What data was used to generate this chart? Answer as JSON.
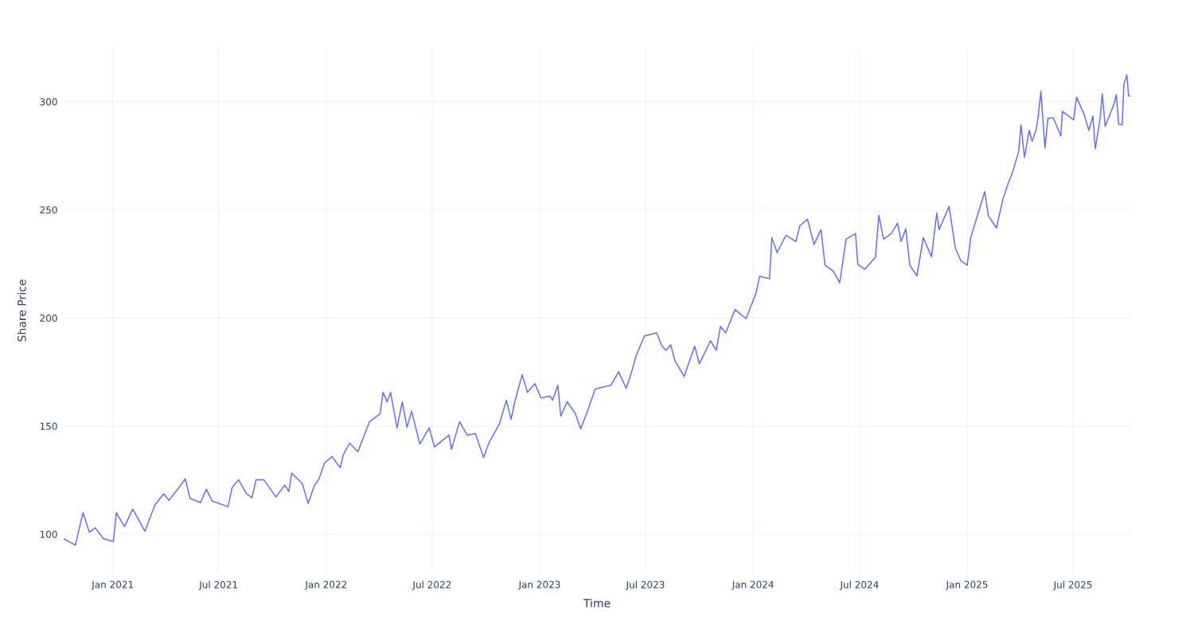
{
  "chart_data": {
    "type": "line",
    "xlabel": "Time",
    "ylabel": "Share Price",
    "color": "#636efa",
    "grid": true,
    "xlim": [
      "2020-10-09",
      "2025-10-07"
    ],
    "ylim": [
      82,
      325
    ],
    "xticks": [
      {
        "value": "2021-01-01",
        "label": "Jan 2021"
      },
      {
        "value": "2021-07-01",
        "label": "Jul 2021"
      },
      {
        "value": "2022-01-01",
        "label": "Jan 2022"
      },
      {
        "value": "2022-07-01",
        "label": "Jul 2022"
      },
      {
        "value": "2023-01-01",
        "label": "Jan 2023"
      },
      {
        "value": "2023-07-01",
        "label": "Jul 2023"
      },
      {
        "value": "2024-01-01",
        "label": "Jan 2024"
      },
      {
        "value": "2024-07-01",
        "label": "Jul 2024"
      },
      {
        "value": "2025-01-01",
        "label": "Jan 2025"
      },
      {
        "value": "2025-07-01",
        "label": "Jul 2025"
      }
    ],
    "yticks": [
      100,
      150,
      200,
      250,
      300
    ],
    "x": [
      "2020-10-09",
      "2020-10-29",
      "2020-11-11",
      "2020-11-22",
      "2020-12-02",
      "2020-12-16",
      "2021-01-02",
      "2021-01-07",
      "2021-01-21",
      "2021-02-04",
      "2021-02-25",
      "2021-03-14",
      "2021-03-29",
      "2021-04-07",
      "2021-04-24",
      "2021-05-05",
      "2021-05-13",
      "2021-05-31",
      "2021-06-10",
      "2021-06-20",
      "2021-07-17",
      "2021-07-24",
      "2021-08-04",
      "2021-08-17",
      "2021-08-27",
      "2021-09-03",
      "2021-09-16",
      "2021-10-07",
      "2021-10-22",
      "2021-10-29",
      "2021-11-03",
      "2021-11-21",
      "2021-12-01",
      "2021-12-12",
      "2021-12-19",
      "2021-12-29",
      "2022-01-11",
      "2022-01-25",
      "2022-01-30",
      "2022-02-10",
      "2022-02-24",
      "2022-03-07",
      "2022-03-16",
      "2022-04-03",
      "2022-04-08",
      "2022-04-15",
      "2022-04-21",
      "2022-05-02",
      "2022-05-11",
      "2022-05-19",
      "2022-05-27",
      "2022-06-10",
      "2022-06-26",
      "2022-07-05",
      "2022-07-30",
      "2022-08-03",
      "2022-08-17",
      "2022-08-30",
      "2022-09-13",
      "2022-09-27",
      "2022-10-06",
      "2022-10-24",
      "2022-11-05",
      "2022-11-13",
      "2022-11-20",
      "2022-12-02",
      "2022-12-11",
      "2022-12-24",
      "2023-01-03",
      "2023-01-19",
      "2023-01-23",
      "2023-02-01",
      "2023-02-06",
      "2023-02-17",
      "2023-03-03",
      "2023-03-12",
      "2023-03-23",
      "2023-04-06",
      "2023-05-03",
      "2023-05-16",
      "2023-05-29",
      "2023-06-06",
      "2023-06-15",
      "2023-06-29",
      "2023-07-20",
      "2023-07-29",
      "2023-08-05",
      "2023-08-13",
      "2023-08-20",
      "2023-09-05",
      "2023-09-23",
      "2023-10-01",
      "2023-10-20",
      "2023-10-30",
      "2023-11-06",
      "2023-11-15",
      "2023-12-01",
      "2023-12-20",
      "2024-01-06",
      "2024-01-12",
      "2024-01-29",
      "2024-02-02",
      "2024-02-11",
      "2024-02-26",
      "2024-03-14",
      "2024-03-21",
      "2024-04-03",
      "2024-04-14",
      "2024-04-26",
      "2024-05-03",
      "2024-05-17",
      "2024-05-28",
      "2024-06-04",
      "2024-06-08",
      "2024-06-24",
      "2024-06-28",
      "2024-07-10",
      "2024-07-28",
      "2024-08-03",
      "2024-08-11",
      "2024-08-24",
      "2024-09-04",
      "2024-09-10",
      "2024-09-18",
      "2024-09-25",
      "2024-10-07",
      "2024-10-18",
      "2024-11-01",
      "2024-11-10",
      "2024-11-14",
      "2024-12-01",
      "2024-12-12",
      "2024-12-21",
      "2025-01-01",
      "2025-01-07",
      "2025-01-31",
      "2025-02-06",
      "2025-02-20",
      "2025-03-03",
      "2025-03-11",
      "2025-03-19",
      "2025-03-30",
      "2025-04-03",
      "2025-04-09",
      "2025-04-17",
      "2025-04-22",
      "2025-04-29",
      "2025-05-02",
      "2025-05-07",
      "2025-05-14",
      "2025-05-19",
      "2025-05-28",
      "2025-06-10",
      "2025-06-13",
      "2025-06-24",
      "2025-07-02",
      "2025-07-07",
      "2025-07-20",
      "2025-07-28",
      "2025-08-04",
      "2025-08-08",
      "2025-08-16",
      "2025-08-20",
      "2025-08-25",
      "2025-09-09",
      "2025-09-13",
      "2025-09-17",
      "2025-09-23",
      "2025-09-26",
      "2025-10-01",
      "2025-10-04",
      "2025-10-07"
    ],
    "values": [
      98,
      95,
      110,
      101,
      103,
      98,
      96.7,
      110,
      103.6,
      111.7,
      101.5,
      113.6,
      118.7,
      115.8,
      121.6,
      125.7,
      116.6,
      114.7,
      120.9,
      115.4,
      112.8,
      121.6,
      125.3,
      119,
      116.9,
      125.3,
      125.3,
      117.3,
      122.8,
      119.8,
      128.3,
      123.5,
      114.3,
      122.8,
      125.3,
      133,
      136,
      130.8,
      136.7,
      142.2,
      138.2,
      145.9,
      152.1,
      155.8,
      165.7,
      161.3,
      165.7,
      149.2,
      161.3,
      149.5,
      156.9,
      141.8,
      149.2,
      140.4,
      145.9,
      139.3,
      152.1,
      145.9,
      146.6,
      135.6,
      142.2,
      151,
      162,
      153.2,
      162,
      173.8,
      165.7,
      169.7,
      163.1,
      163.9,
      162,
      169,
      154.7,
      161.3,
      155.8,
      148.8,
      156.5,
      167.2,
      169,
      175.2,
      167.5,
      174.1,
      182.6,
      191.7,
      193.2,
      187,
      185.1,
      187.7,
      180.4,
      173,
      187,
      178.9,
      189.5,
      185.1,
      196.1,
      193.2,
      203.9,
      199.8,
      211.6,
      219.3,
      218.2,
      237.2,
      230.3,
      238.3,
      235.4,
      242.8,
      245.7,
      234,
      240.9,
      224.4,
      221.8,
      216.3,
      229.2,
      236.5,
      239.1,
      224.8,
      222.6,
      228.1,
      247.5,
      236.5,
      239.1,
      243.9,
      235.4,
      241.3,
      224.4,
      219.6,
      237.2,
      228.4,
      248.6,
      240.9,
      251.6,
      232.1,
      226.6,
      224.4,
      237.2,
      258.5,
      247.5,
      241.7,
      254.9,
      261.5,
      267,
      276.9,
      289.4,
      274.3,
      286.8,
      281.7,
      287.2,
      292.3,
      304.8,
      278.7,
      292.3,
      292.7,
      284.2,
      295.6,
      293.4,
      291.6,
      302.2,
      294.1,
      286.8,
      293.4,
      278.3,
      291.6,
      303.7,
      288.6,
      298.9,
      303.3,
      289.7,
      289.4,
      308.1,
      312.5,
      302.9,
      302.6
    ]
  }
}
